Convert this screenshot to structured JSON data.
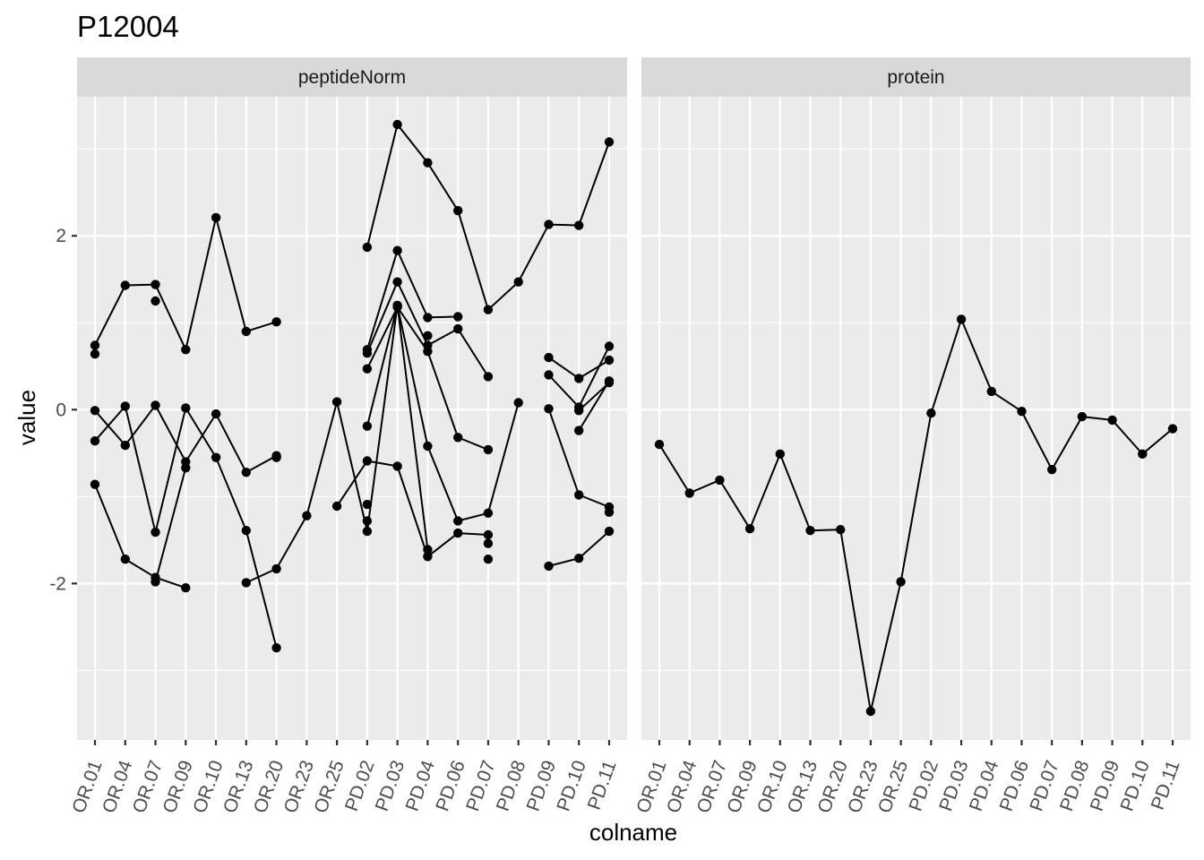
{
  "chart_data": {
    "type": "line",
    "title": "P12004",
    "xlabel": "colname",
    "ylabel": "value",
    "ylim": [
      -3.8,
      3.6
    ],
    "yticks": [
      -2,
      0,
      2
    ],
    "categories": [
      "OR.01",
      "OR.04",
      "OR.07",
      "OR.09",
      "OR.10",
      "OR.13",
      "OR.20",
      "OR.23",
      "OR.25",
      "PD.02",
      "PD.03",
      "PD.04",
      "PD.06",
      "PD.07",
      "PD.08",
      "PD.09",
      "PD.10",
      "PD.11"
    ],
    "grid": true,
    "panel_background": "#ebebeb",
    "strip_background": "#d9d9d9",
    "point_color": "#000000",
    "line_color": "#000000",
    "panels": [
      {
        "label": "peptideNorm",
        "series": [
          {
            "values": [
              0.74,
              1.43,
              1.44,
              0.69,
              2.21,
              0.9,
              1.01,
              null,
              null,
              1.87,
              3.28,
              2.84,
              2.29,
              1.15,
              1.47,
              2.13,
              2.12,
              3.08
            ]
          },
          {
            "values": [
              0.64,
              null,
              1.25,
              null,
              null,
              null,
              null,
              null,
              null,
              0.69,
              1.83,
              1.06,
              1.07,
              null,
              null,
              0.6,
              0.36,
              0.57
            ]
          },
          {
            "values": [
              -0.01,
              -0.41,
              0.05,
              -0.6,
              -0.05,
              -0.72,
              -0.53,
              null,
              null,
              0.65,
              1.47,
              0.74,
              0.93,
              0.38,
              null,
              0.4,
              0.03,
              0.73
            ]
          },
          {
            "values": [
              -0.36,
              0.04,
              -1.41,
              0.02,
              -0.55,
              -1.39,
              -2.74,
              null,
              null,
              0.47,
              1.18,
              0.67,
              -0.32,
              -0.46,
              null,
              0.01,
              -0.98,
              -1.12
            ]
          },
          {
            "values": [
              -0.86,
              -1.72,
              -1.93,
              -2.05,
              null,
              -1.99,
              -1.83,
              -1.22,
              0.09,
              -1.4,
              1.2,
              -0.42,
              -1.28,
              -1.19,
              0.08,
              null,
              -0.24,
              0.33
            ]
          },
          {
            "values": [
              null,
              null,
              -1.98,
              -0.67,
              null,
              null,
              -0.55,
              null,
              -1.11,
              -0.59,
              -0.65,
              -1.69,
              -1.42,
              -1.44,
              null,
              -1.8,
              -1.71,
              -1.4
            ]
          },
          {
            "values": [
              null,
              null,
              null,
              null,
              null,
              null,
              null,
              null,
              null,
              -0.19,
              1.2,
              -1.61,
              null,
              -1.54,
              null,
              null,
              -0.01,
              0.31
            ]
          },
          {
            "values": [
              null,
              null,
              null,
              null,
              null,
              null,
              null,
              null,
              null,
              -1.09,
              null,
              0.85,
              null,
              -1.72,
              null,
              null,
              null,
              -1.18
            ]
          },
          {
            "values": [
              null,
              null,
              null,
              null,
              null,
              null,
              null,
              null,
              null,
              -1.28,
              null,
              null,
              null,
              null,
              null,
              null,
              null,
              null
            ]
          }
        ]
      },
      {
        "label": "protein",
        "series": [
          {
            "values": [
              -0.4,
              -0.96,
              -0.81,
              -1.37,
              -0.51,
              -1.39,
              -1.38,
              -3.47,
              -1.98,
              -0.04,
              1.04,
              0.21,
              -0.02,
              -0.69,
              -0.08,
              -0.12,
              -0.51,
              -0.22
            ]
          }
        ]
      }
    ]
  }
}
